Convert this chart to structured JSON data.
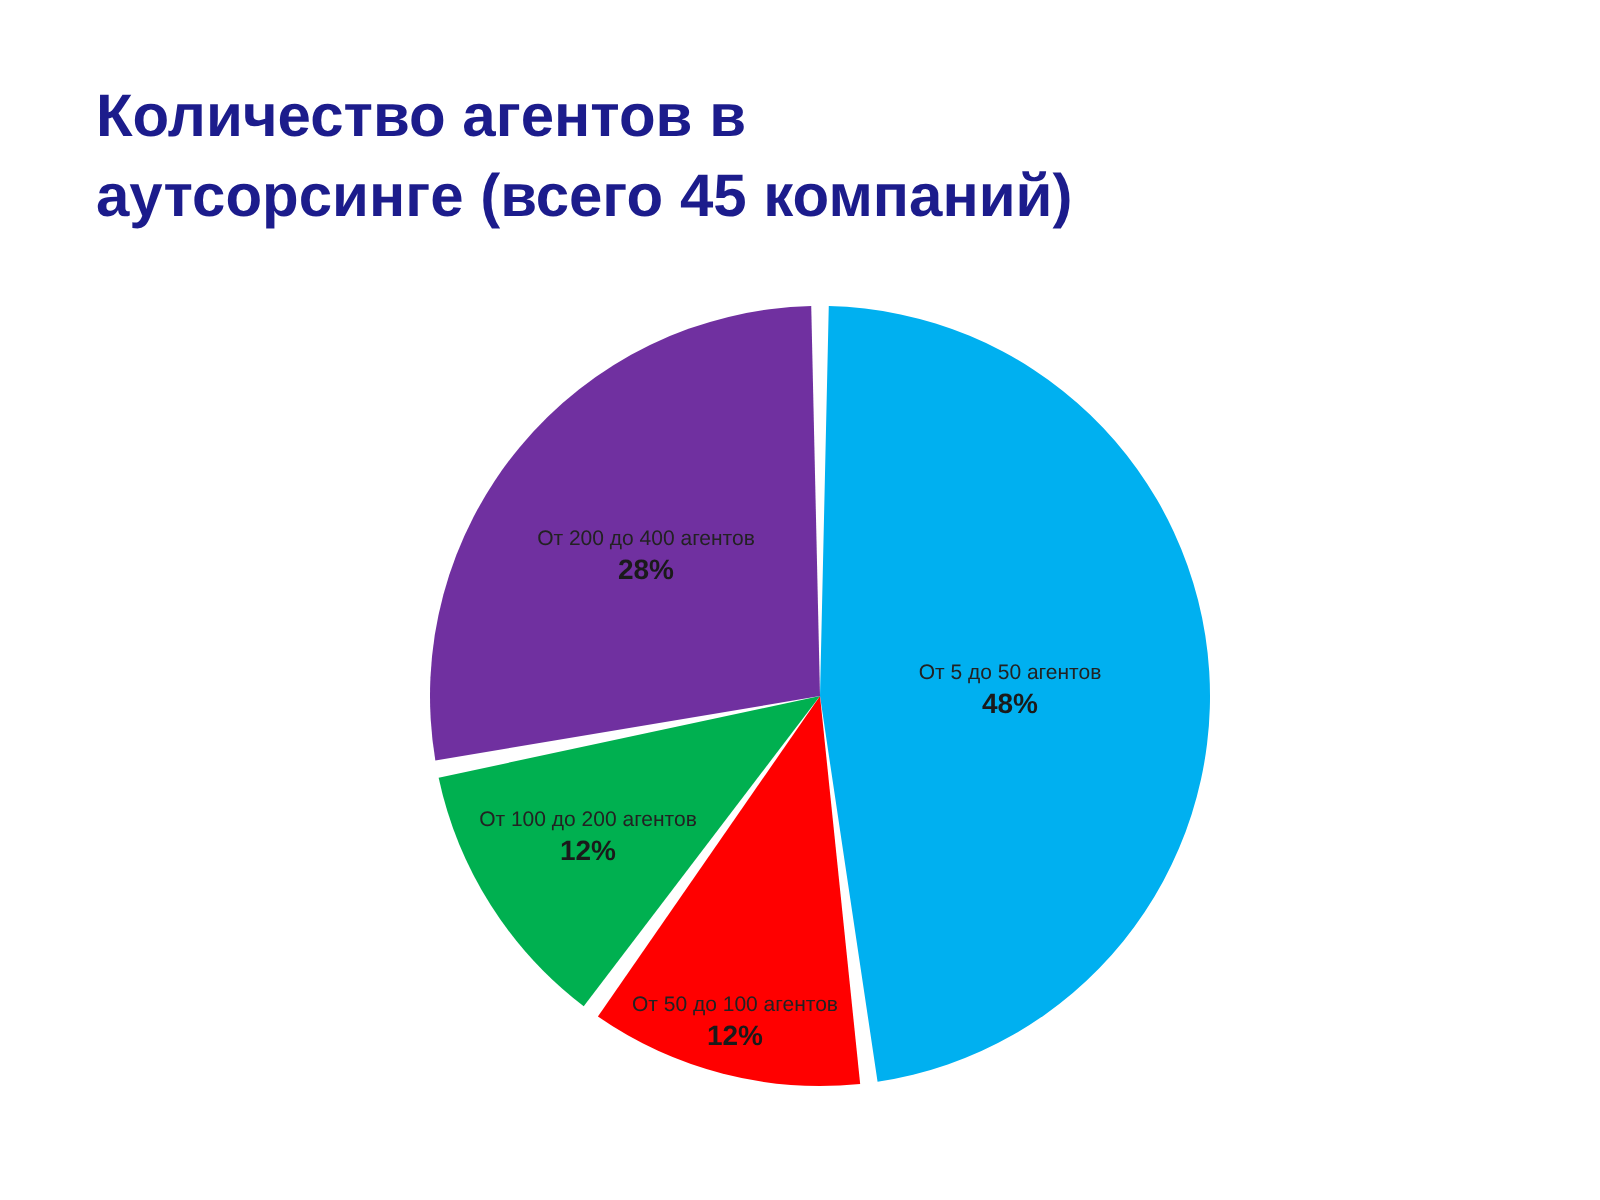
{
  "chart_data": {
    "type": "pie",
    "title": "Количество агентов в\nаутсорсинге (всего 45 компаний)",
    "categories": [
      "От 5 до 50 агентов",
      "От 50 до 100 агентов",
      "От 100 до 200 агентов",
      "От 200 до 400 агентов"
    ],
    "values": [
      48,
      12,
      12,
      28
    ],
    "colors": [
      "#00b0f0",
      "#ff0000",
      "#00b050",
      "#7030a0"
    ],
    "value_labels": [
      "48%",
      "12%",
      "12%",
      "28%"
    ]
  }
}
